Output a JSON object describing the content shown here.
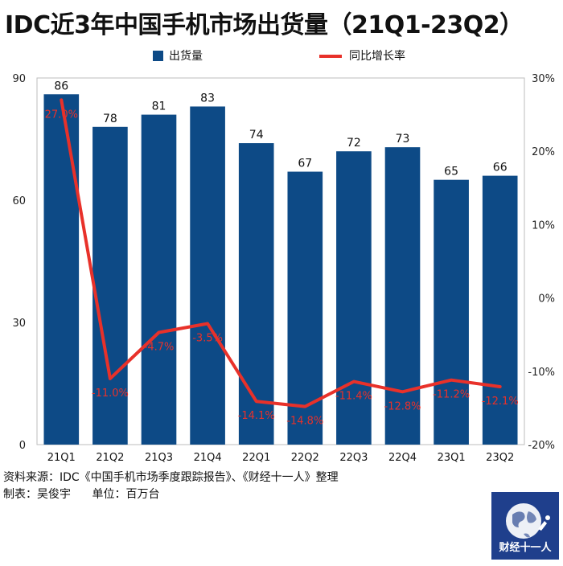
{
  "title": "IDC近3年中国手机市场出货量（21Q1-23Q2）",
  "chart_data": {
    "type": "bar+line",
    "categories": [
      "21Q1",
      "21Q2",
      "21Q3",
      "21Q4",
      "22Q1",
      "22Q2",
      "22Q3",
      "22Q4",
      "23Q1",
      "23Q2"
    ],
    "series": [
      {
        "name": "出货量",
        "type": "bar",
        "axis": "left",
        "color": "#0d4a86",
        "values": [
          86,
          78,
          81,
          83,
          74,
          67,
          72,
          73,
          65,
          66
        ],
        "labels": [
          "86",
          "78",
          "81",
          "83",
          "74",
          "67",
          "72",
          "73",
          "65",
          "66"
        ]
      },
      {
        "name": "同比增长率",
        "type": "line",
        "axis": "right",
        "color": "#e8312a",
        "values": [
          27.0,
          -11.0,
          -4.7,
          -3.5,
          -14.1,
          -14.8,
          -11.4,
          -12.8,
          -11.2,
          -12.1
        ],
        "labels": [
          "27.0%",
          "-11.0%",
          "-4.7%",
          "-3.5%",
          "-14.1%",
          "-14.8%",
          "-11.4%",
          "-12.8%",
          "-11.2%",
          "-12.1%"
        ]
      }
    ],
    "y_left": {
      "min": 0,
      "max": 90,
      "ticks": [
        "0",
        "30",
        "60",
        "90"
      ]
    },
    "y_right": {
      "min": -20,
      "max": 30,
      "ticks": [
        "-20%",
        "-10%",
        "0%",
        "10%",
        "20%",
        "30%"
      ]
    },
    "legend": {
      "position": "top"
    },
    "grid": false
  },
  "footer": {
    "source": "资料来源：IDC《中国手机市场季度跟踪报告》、《财经十一人》整理",
    "maker": "制表：吴俊宇",
    "unit": "单位：百万台"
  },
  "logo": {
    "text": "财经十一人"
  }
}
